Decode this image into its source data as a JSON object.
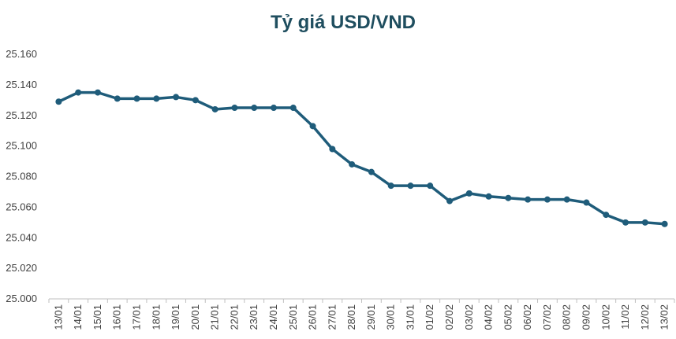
{
  "chart_data": {
    "type": "line",
    "title": "Tỷ giá USD/VND",
    "xlabel": "",
    "ylabel": "",
    "categories": [
      "13/01",
      "14/01",
      "15/01",
      "16/01",
      "17/01",
      "18/01",
      "19/01",
      "20/01",
      "21/01",
      "22/01",
      "23/01",
      "24/01",
      "25/01",
      "26/01",
      "27/01",
      "28/01",
      "29/01",
      "30/01",
      "31/01",
      "01/02",
      "02/02",
      "03/02",
      "04/02",
      "05/02",
      "06/02",
      "07/02",
      "08/02",
      "09/02",
      "10/02",
      "11/02",
      "12/02",
      "13/02"
    ],
    "series": [
      {
        "values": [
          25129,
          25135,
          25135,
          25131,
          25131,
          25131,
          25132,
          25130,
          25124,
          25125,
          25125,
          25125,
          25125,
          25113,
          25098,
          25088,
          25083,
          25074,
          25074,
          25074,
          25064,
          25069,
          25067,
          25066,
          25065,
          25065,
          25065,
          25063,
          25055,
          25050,
          25050,
          25049
        ]
      }
    ],
    "ylim": [
      25000,
      25160
    ],
    "yticks": [
      25000,
      25020,
      25040,
      25060,
      25080,
      25100,
      25120,
      25140,
      25160
    ],
    "ytick_labels": [
      "25.000",
      "25.020",
      "25.040",
      "25.060",
      "25.080",
      "25.100",
      "25.120",
      "25.140",
      "25.160"
    ],
    "grid": false,
    "legend": "none",
    "colors": {
      "line": "#1f5c7a",
      "marker": "#1f5c7a",
      "title": "#1f4e5f"
    }
  }
}
